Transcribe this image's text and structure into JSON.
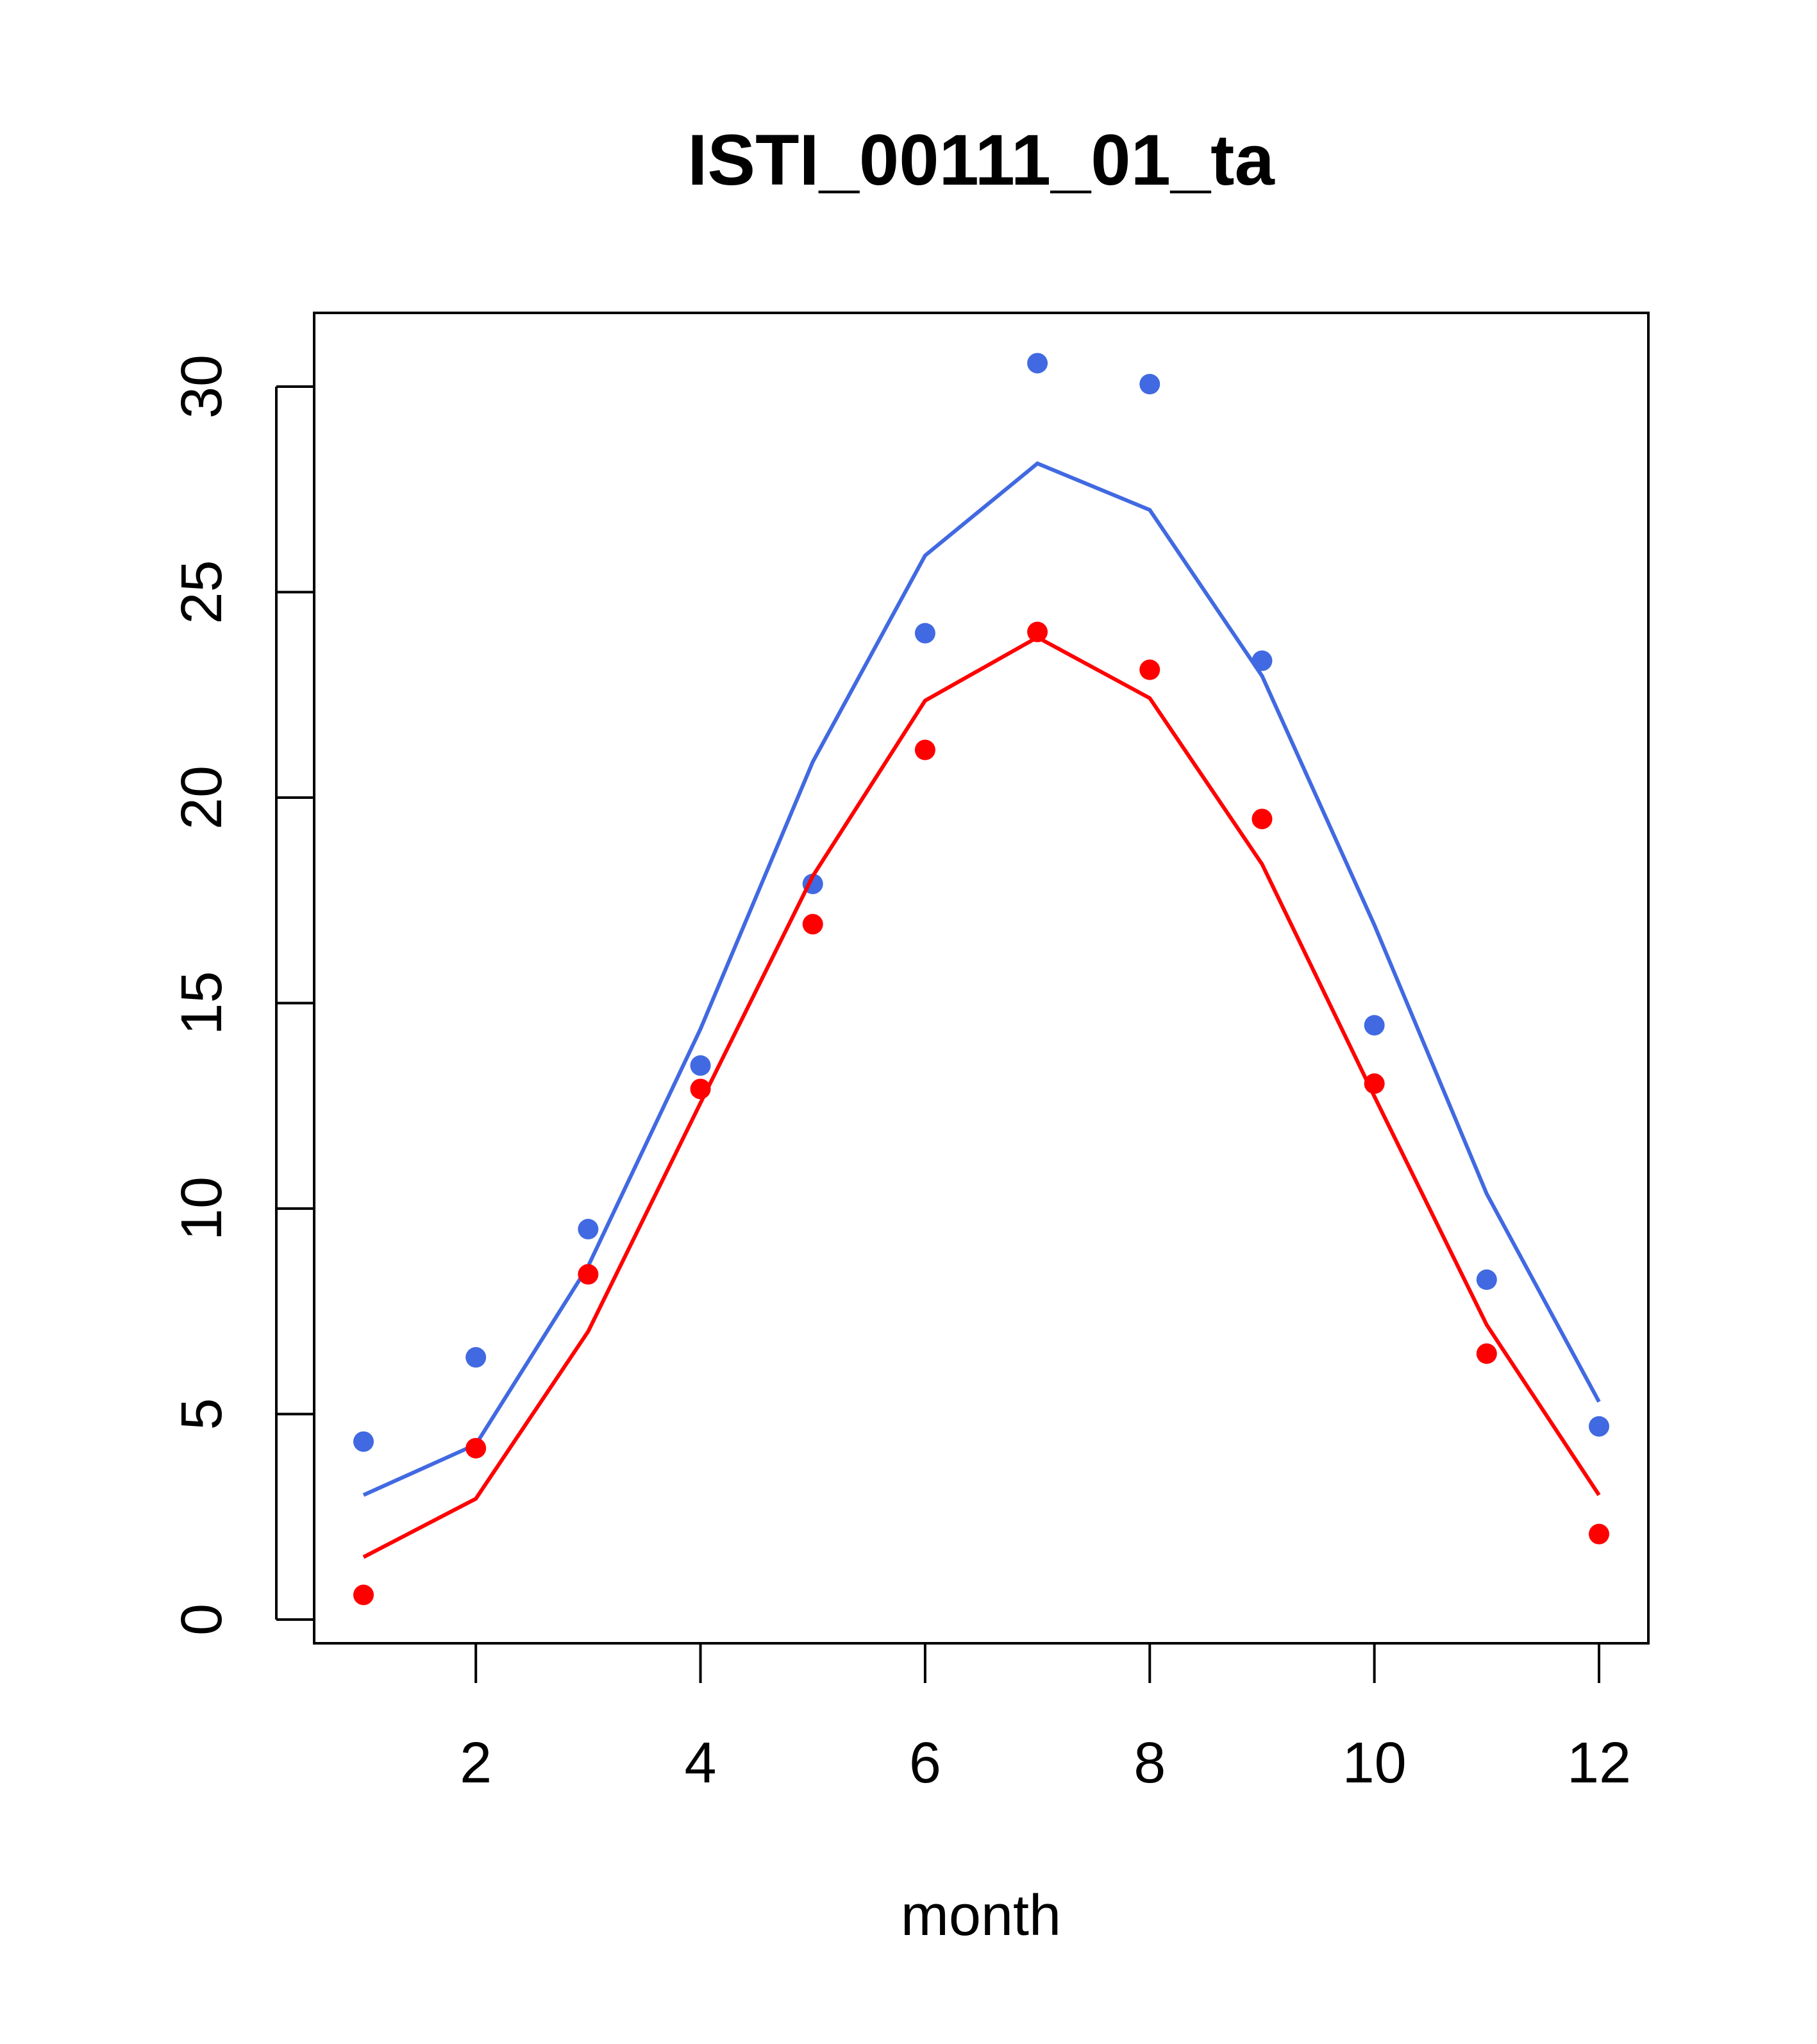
{
  "chart_data": {
    "type": "line",
    "title": "ISTI_00111_01_ta",
    "xlabel": "month",
    "ylabel": "",
    "xlim": [
      0.56,
      12.44
    ],
    "ylim": [
      -0.5,
      31.9
    ],
    "x_ticks": [
      2,
      4,
      6,
      8,
      10,
      12
    ],
    "y_ticks": [
      0,
      5,
      10,
      15,
      20,
      25,
      30
    ],
    "x_tick_labels": [
      "2",
      "4",
      "6",
      "8",
      "10",
      "12"
    ],
    "y_tick_labels": [
      "0",
      "5",
      "10",
      "15",
      "20",
      "25",
      "30"
    ],
    "grid": false,
    "legend": "none",
    "x": [
      1,
      2,
      3,
      4,
      5,
      6,
      7,
      8,
      9,
      10,
      11,
      12
    ],
    "series": [
      {
        "name": "blue points",
        "kind": "points",
        "color": "#4169E1",
        "values": [
          4.33,
          6.38,
          9.5,
          13.48,
          17.9,
          24.0,
          30.57,
          30.06,
          23.33,
          14.46,
          8.27,
          4.7
        ]
      },
      {
        "name": "blue line",
        "kind": "line",
        "color": "#4169E1",
        "values": [
          3.03,
          4.26,
          8.6,
          14.37,
          20.87,
          25.89,
          28.13,
          27.0,
          22.96,
          16.9,
          10.36,
          5.3
        ]
      },
      {
        "name": "red points",
        "kind": "points",
        "color": "#FF0000",
        "values": [
          0.6,
          4.17,
          8.4,
          12.91,
          16.92,
          21.16,
          24.03,
          23.11,
          19.48,
          13.04,
          6.47,
          2.08
        ]
      },
      {
        "name": "red line",
        "kind": "line",
        "color": "#FF0000",
        "values": [
          1.52,
          2.94,
          7.01,
          12.57,
          18.09,
          22.36,
          23.9,
          22.42,
          18.38,
          12.73,
          7.17,
          3.03
        ]
      }
    ]
  }
}
